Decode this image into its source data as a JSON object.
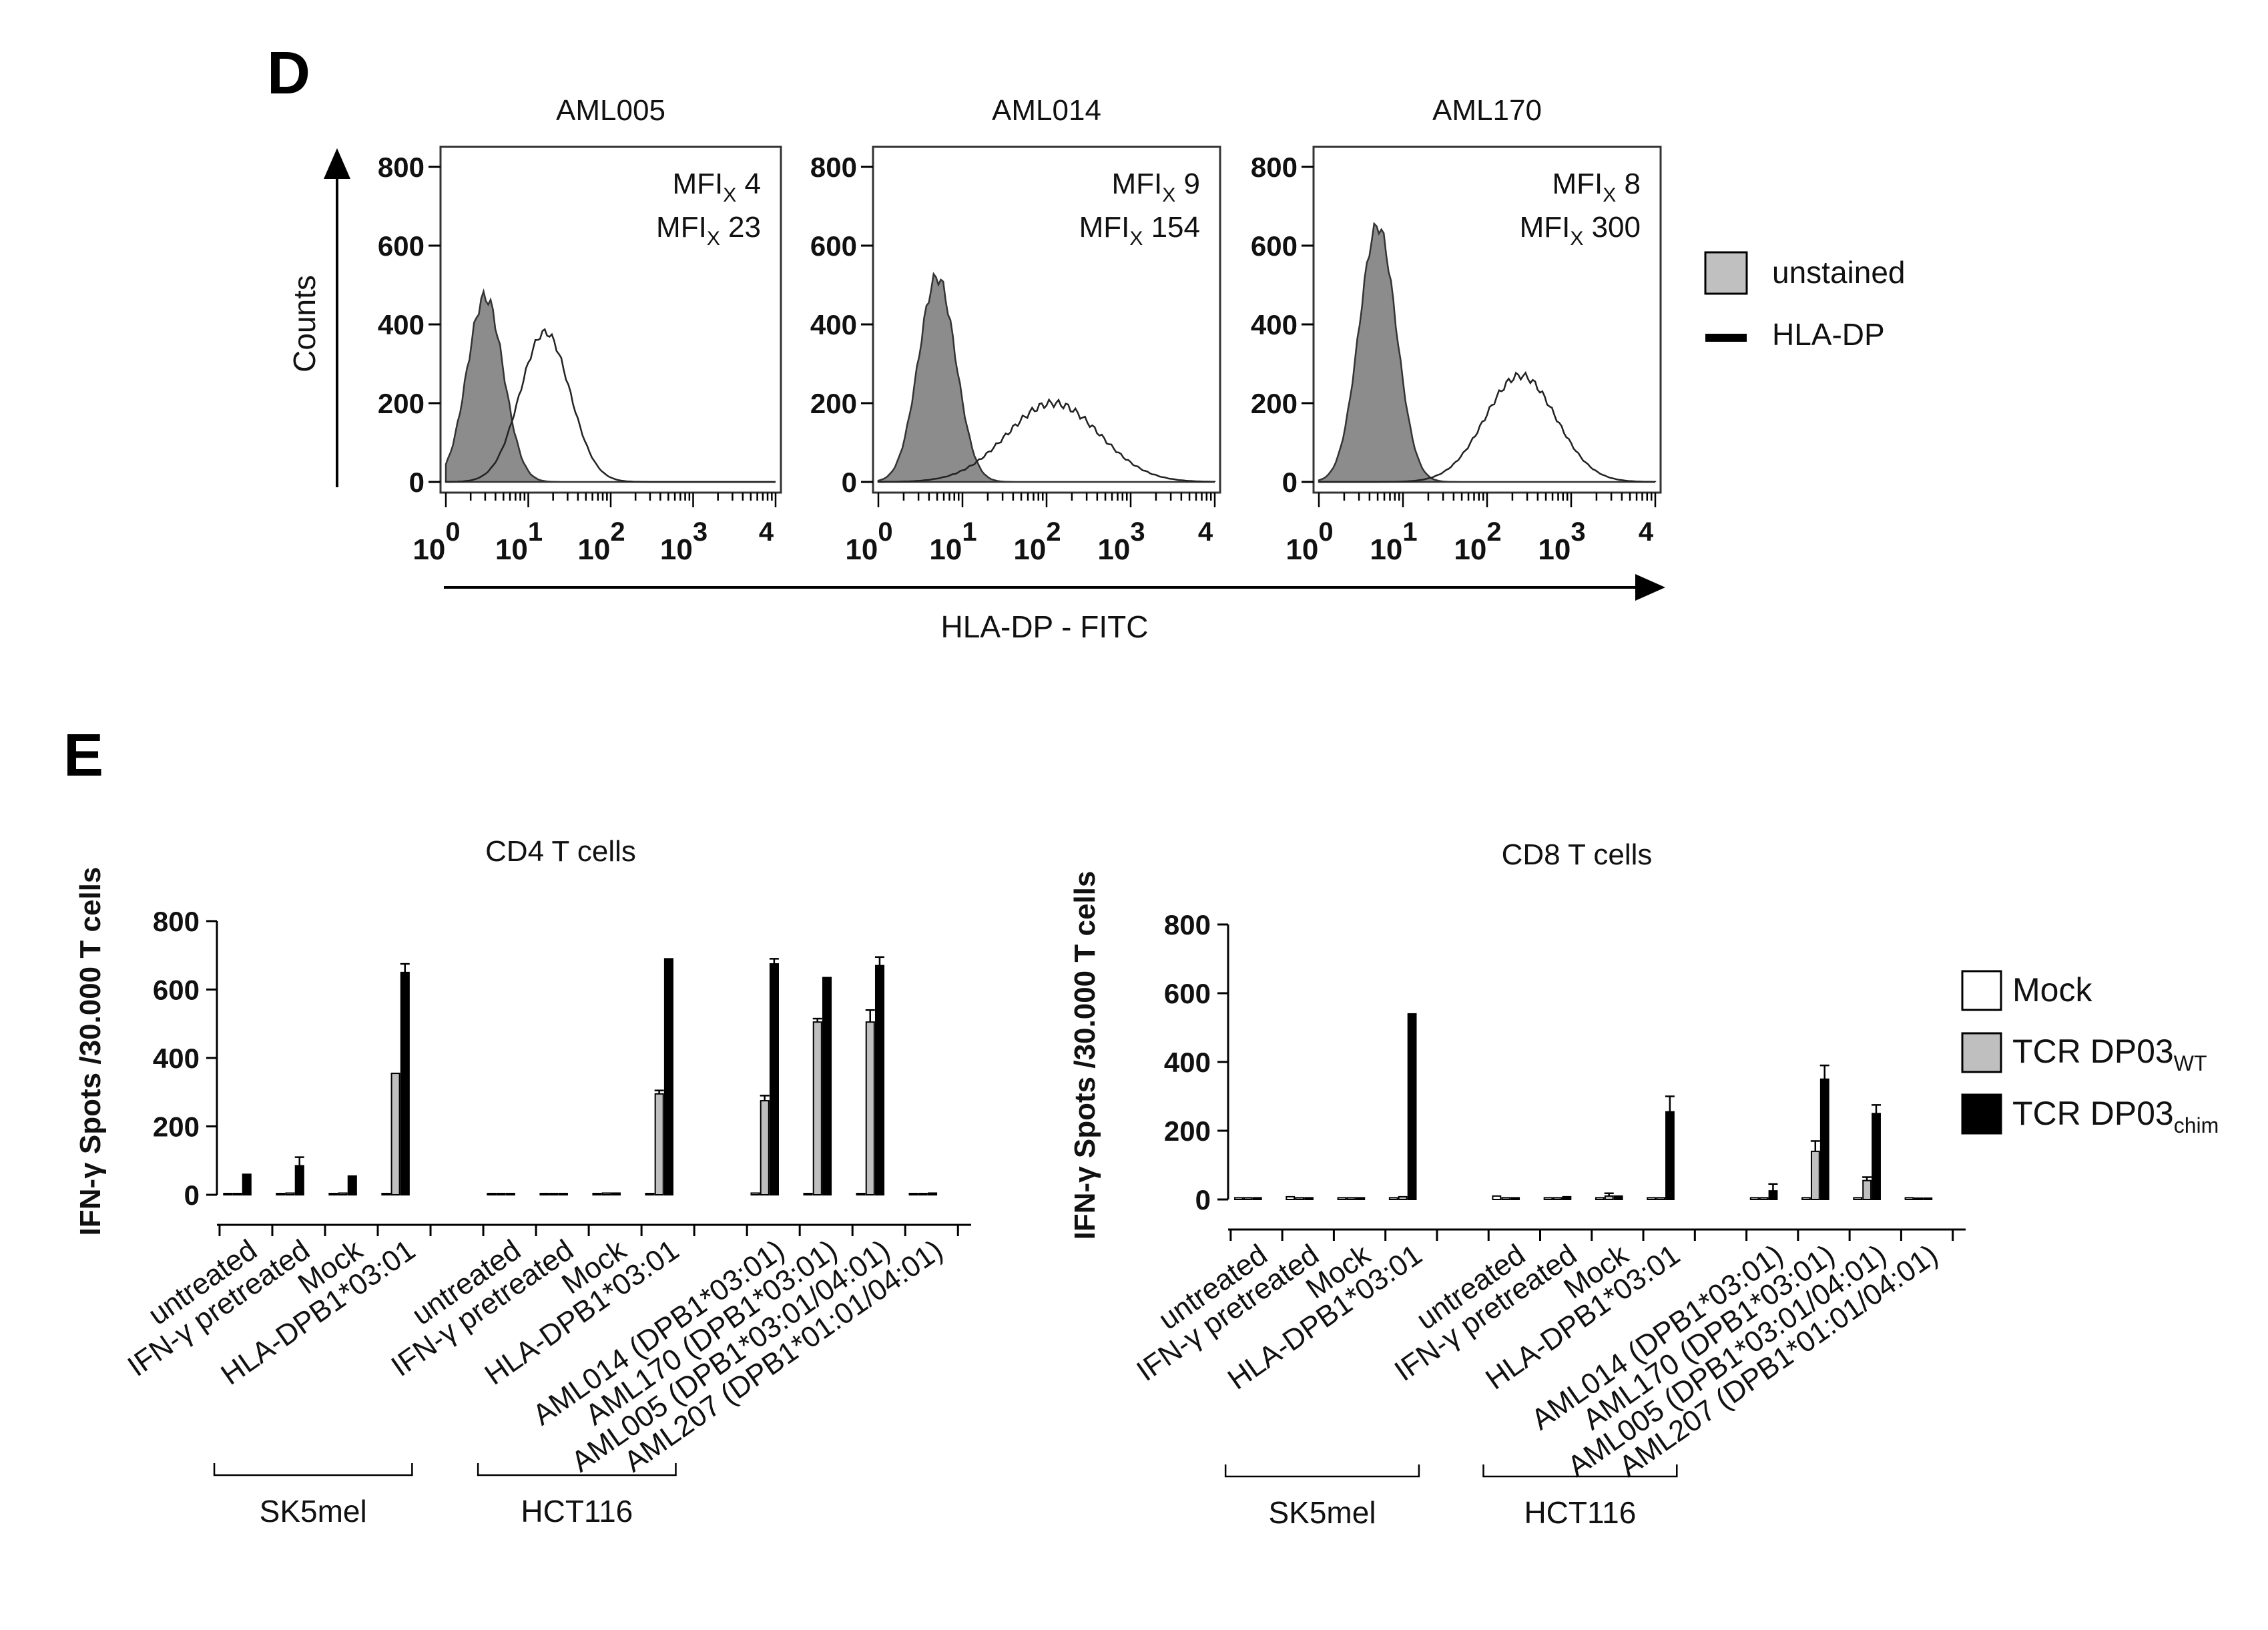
{
  "panels": {
    "D": {
      "letter": "D",
      "y_label": "Counts",
      "x_label": "HLA-DP - FITC",
      "legend": [
        {
          "label": "unstained",
          "style": "filled-gray"
        },
        {
          "label": "HLA-DP",
          "style": "black-line"
        }
      ],
      "y_ticks": [
        "800",
        "600",
        "400",
        "200",
        "0"
      ],
      "x_ticks": [
        {
          "base": "10",
          "exp": "0"
        },
        {
          "base": "10",
          "exp": "1"
        },
        {
          "base": "10",
          "exp": "2"
        },
        {
          "base": "10",
          "exp": "3"
        },
        {
          "base": "",
          "exp": "4"
        }
      ],
      "mfi_prefix": "MFI",
      "mfi_sub": "X",
      "histograms": [
        {
          "title": "AML005",
          "mfi_unstained": "4",
          "mfi_stained": "23",
          "peak_unstained": 470,
          "peak_stained": 380
        },
        {
          "title": "AML014",
          "mfi_unstained": "9",
          "mfi_stained": "154",
          "peak_unstained": 520,
          "peak_stained": 200
        },
        {
          "title": "AML170",
          "mfi_unstained": "8",
          "mfi_stained": "300",
          "peak_unstained": 650,
          "peak_stained": 270
        }
      ]
    },
    "E": {
      "letter": "E",
      "y_label": "IFN-γ Spots /30.000 T cells",
      "y_ticks": [
        "800",
        "600",
        "400",
        "200",
        "0"
      ],
      "legend": [
        {
          "label": "Mock",
          "sub": "",
          "color": "#ffffff"
        },
        {
          "label": "TCR DP03",
          "sub": "WT",
          "color": "#bfbfbf"
        },
        {
          "label": "TCR DP03",
          "sub": "chim",
          "color": "#000000"
        }
      ],
      "groups": [
        {
          "name": "SK5mel",
          "categories": [
            "untreated",
            "IFN-γ pretreated",
            "Mock",
            "HLA-DPB1*03:01"
          ]
        },
        {
          "name": "HCT116",
          "categories": [
            "untreated",
            "IFN-γ pretreated",
            "Mock",
            "HLA-DPB1*03:01"
          ]
        },
        {
          "name": "",
          "categories": [
            "AML014 (DPB1*03:01)",
            "AML170 (DPB1*03:01)",
            "AML005 (DPB1*03:01/04:01)",
            "AML207 (DPB1*01:01/04:01)"
          ]
        }
      ]
    }
  },
  "chart_data": [
    {
      "type": "area",
      "title": "AML005",
      "xlabel": "HLA-DP - FITC",
      "ylabel": "Counts",
      "x_scale": "log",
      "xlim": [
        1,
        10000
      ],
      "ylim": [
        0,
        800
      ],
      "series": [
        {
          "name": "unstained",
          "mfi": 4,
          "peak_x": 3,
          "peak_count": 470
        },
        {
          "name": "HLA-DP",
          "mfi": 23,
          "peak_x": 16,
          "peak_count": 380
        }
      ]
    },
    {
      "type": "area",
      "title": "AML014",
      "xlabel": "HLA-DP - FITC",
      "ylabel": "Counts",
      "x_scale": "log",
      "xlim": [
        1,
        10000
      ],
      "ylim": [
        0,
        800
      ],
      "series": [
        {
          "name": "unstained",
          "mfi": 9,
          "peak_x": 5,
          "peak_count": 520
        },
        {
          "name": "HLA-DP",
          "mfi": 154,
          "peak_x": 120,
          "peak_count": 200
        }
      ]
    },
    {
      "type": "area",
      "title": "AML170",
      "xlabel": "HLA-DP - FITC",
      "ylabel": "Counts",
      "x_scale": "log",
      "xlim": [
        1,
        10000
      ],
      "ylim": [
        0,
        800
      ],
      "series": [
        {
          "name": "unstained",
          "mfi": 8,
          "peak_x": 5,
          "peak_count": 650
        },
        {
          "name": "HLA-DP",
          "mfi": 300,
          "peak_x": 250,
          "peak_count": 270
        }
      ]
    },
    {
      "type": "bar",
      "title": "CD4 T cells",
      "ylabel": "IFN-γ Spots /30.000 T cells",
      "ylim": [
        0,
        800
      ],
      "categories": [
        "untreated",
        "IFN-γ pretreated",
        "Mock",
        "HLA-DPB1*03:01",
        "untreated",
        "IFN-γ pretreated",
        "Mock",
        "HLA-DPB1*03:01",
        "AML014 (DPB1*03:01)",
        "AML170 (DPB1*03:01)",
        "AML005 (DPB1*03:01/04:01)",
        "AML207 (DPB1*01:01/04:01)"
      ],
      "series": [
        {
          "name": "Mock",
          "values": [
            2,
            2,
            2,
            2,
            2,
            2,
            2,
            2,
            5,
            2,
            2,
            2
          ],
          "errors": [
            0,
            0,
            0,
            0,
            0,
            0,
            0,
            0,
            0,
            0,
            0,
            0
          ]
        },
        {
          "name": "TCR DP03 WT",
          "values": [
            2,
            5,
            5,
            355,
            2,
            2,
            5,
            295,
            275,
            505,
            505,
            2
          ],
          "errors": [
            0,
            0,
            0,
            0,
            0,
            0,
            0,
            10,
            15,
            10,
            35,
            0
          ]
        },
        {
          "name": "TCR DP03 chim",
          "values": [
            60,
            85,
            55,
            650,
            2,
            2,
            5,
            690,
            675,
            635,
            670,
            5
          ],
          "errors": [
            0,
            25,
            0,
            25,
            0,
            0,
            0,
            0,
            15,
            0,
            25,
            0
          ]
        }
      ]
    },
    {
      "type": "bar",
      "title": "CD8 T cells",
      "ylabel": "IFN-γ Spots /30.000 T cells",
      "ylim": [
        0,
        800
      ],
      "categories": [
        "untreated",
        "IFN-γ pretreated",
        "Mock",
        "HLA-DPB1*03:01",
        "untreated",
        "IFN-γ pretreated",
        "Mock",
        "HLA-DPB1*03:01",
        "AML014 (DPB1*03:01)",
        "AML170 (DPB1*03:01)",
        "AML005 (DPB1*03:01/04:01)",
        "AML207 (DPB1*01:01/04:01)"
      ],
      "series": [
        {
          "name": "Mock",
          "values": [
            5,
            8,
            5,
            5,
            10,
            5,
            5,
            5,
            5,
            5,
            5,
            5
          ],
          "errors": [
            0,
            0,
            0,
            0,
            0,
            0,
            0,
            0,
            0,
            0,
            0,
            0
          ]
        },
        {
          "name": "TCR DP03 WT",
          "values": [
            5,
            5,
            5,
            8,
            5,
            5,
            10,
            5,
            5,
            140,
            55,
            2
          ],
          "errors": [
            0,
            0,
            0,
            0,
            0,
            0,
            8,
            0,
            0,
            30,
            10,
            0
          ]
        },
        {
          "name": "TCR DP03 chim",
          "values": [
            5,
            5,
            5,
            540,
            5,
            8,
            10,
            255,
            25,
            350,
            250,
            2
          ],
          "errors": [
            0,
            0,
            0,
            0,
            0,
            0,
            0,
            45,
            20,
            40,
            25,
            0
          ]
        }
      ]
    }
  ]
}
